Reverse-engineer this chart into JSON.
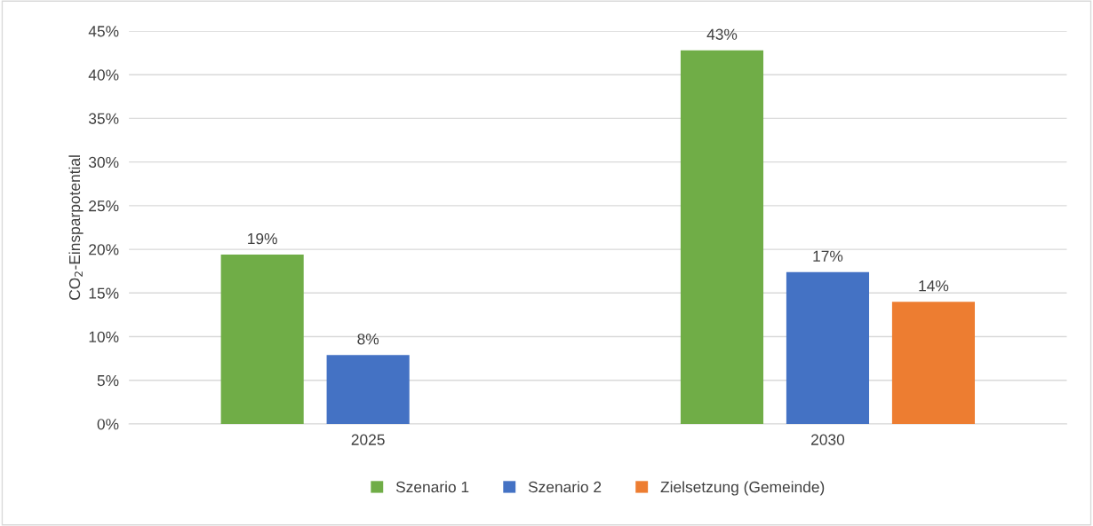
{
  "chart_data": {
    "type": "bar",
    "ylabel": "CO$_{2}$-Einsparpotential",
    "categories": [
      "2025",
      "2030"
    ],
    "series": [
      {
        "name": "Szenario 1",
        "color": "#70ad47",
        "values": [
          19.4,
          42.8
        ],
        "value_labels": [
          "19%",
          "43%"
        ]
      },
      {
        "name": "Szenario 2",
        "color": "#4472c4",
        "values": [
          7.9,
          17.4
        ],
        "value_labels": [
          "8%",
          "17%"
        ]
      },
      {
        "name": "Zielsetzung (Gemeinde)",
        "color": "#ed7d31",
        "values": [
          null,
          14.0
        ],
        "value_labels": [
          null,
          "14%"
        ]
      }
    ],
    "ylim": [
      0,
      45
    ],
    "yticks": [
      {
        "value": 0,
        "label": "0%"
      },
      {
        "value": 5,
        "label": "5%"
      },
      {
        "value": 10,
        "label": "10%"
      },
      {
        "value": 15,
        "label": "15%"
      },
      {
        "value": 20,
        "label": "20%"
      },
      {
        "value": 25,
        "label": "25%"
      },
      {
        "value": 30,
        "label": "30%"
      },
      {
        "value": 35,
        "label": "35%"
      },
      {
        "value": 40,
        "label": "40%"
      },
      {
        "value": 45,
        "label": "45%"
      }
    ],
    "grid": "y",
    "legend": "bottom"
  }
}
